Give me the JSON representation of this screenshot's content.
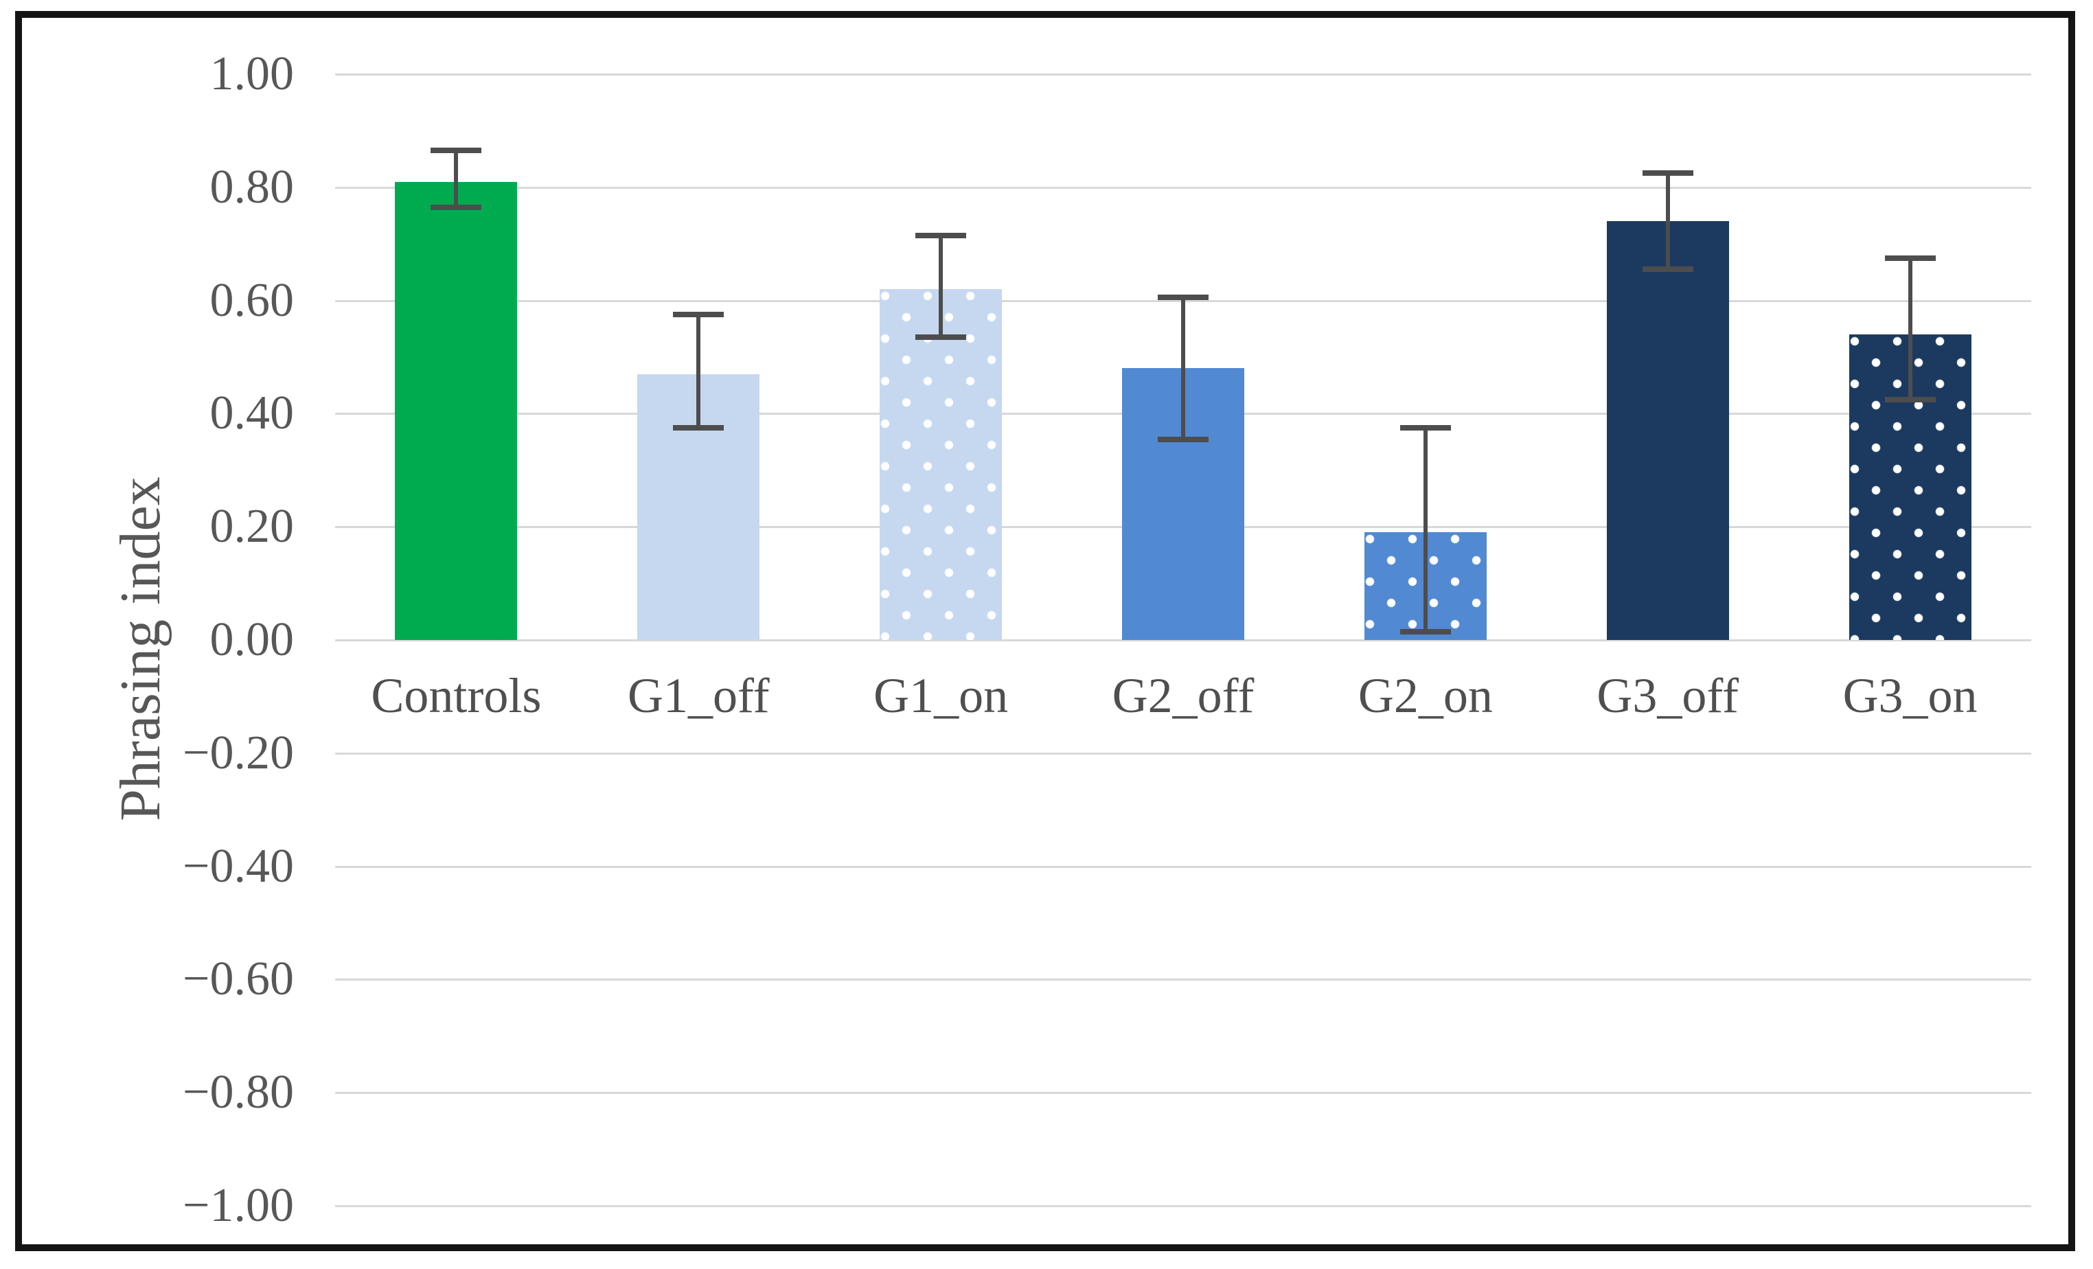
{
  "chart_data": {
    "type": "bar",
    "title": "",
    "xlabel": "",
    "ylabel": "Phrasing index",
    "ylim": [
      -1.0,
      1.0
    ],
    "grid": "horizontal-on",
    "legend": "none",
    "categories": [
      "Controls",
      "G1_off",
      "G1_on",
      "G2_off",
      "G2_on",
      "G3_off",
      "G3_on"
    ],
    "series": [
      {
        "name": "Phrasing index",
        "values": [
          0.81,
          0.47,
          0.62,
          0.48,
          0.19,
          0.74,
          0.54
        ]
      }
    ],
    "error_bars": {
      "low": [
        0.76,
        0.37,
        0.53,
        0.35,
        0.01,
        0.65,
        0.42
      ],
      "high": [
        0.87,
        0.58,
        0.72,
        0.61,
        0.38,
        0.83,
        0.68
      ]
    },
    "yticks": [
      {
        "label": "1.00",
        "value": 1.0
      },
      {
        "label": "0.80",
        "value": 0.8
      },
      {
        "label": "0.60",
        "value": 0.6
      },
      {
        "label": "0.40",
        "value": 0.4
      },
      {
        "label": "0.20",
        "value": 0.2
      },
      {
        "label": "0.00",
        "value": 0.0
      },
      {
        "label": "−0.20",
        "value": -0.2
      },
      {
        "label": "−0.40",
        "value": -0.4
      },
      {
        "label": "−0.60",
        "value": -0.6
      },
      {
        "label": "−0.80",
        "value": -0.8
      },
      {
        "label": "−1.00",
        "value": -1.0
      }
    ],
    "bar_styles": [
      {
        "fill": "#00AB50",
        "pattern": "solid"
      },
      {
        "fill": "#C6D8F0",
        "pattern": "solid"
      },
      {
        "fill": "#C6D8F0",
        "pattern": "white-dots"
      },
      {
        "fill": "#5189D3",
        "pattern": "solid"
      },
      {
        "fill": "#5189D3",
        "pattern": "white-dots"
      },
      {
        "fill": "#1C3A5F",
        "pattern": "solid"
      },
      {
        "fill": "#1C3A5F",
        "pattern": "white-dots"
      }
    ],
    "colors": {
      "gridline": "#d8d8d8",
      "error_bar": "#4d4d4d",
      "axis_text": "#575757",
      "frame_border": "#141414",
      "background": "#ffffff"
    }
  }
}
